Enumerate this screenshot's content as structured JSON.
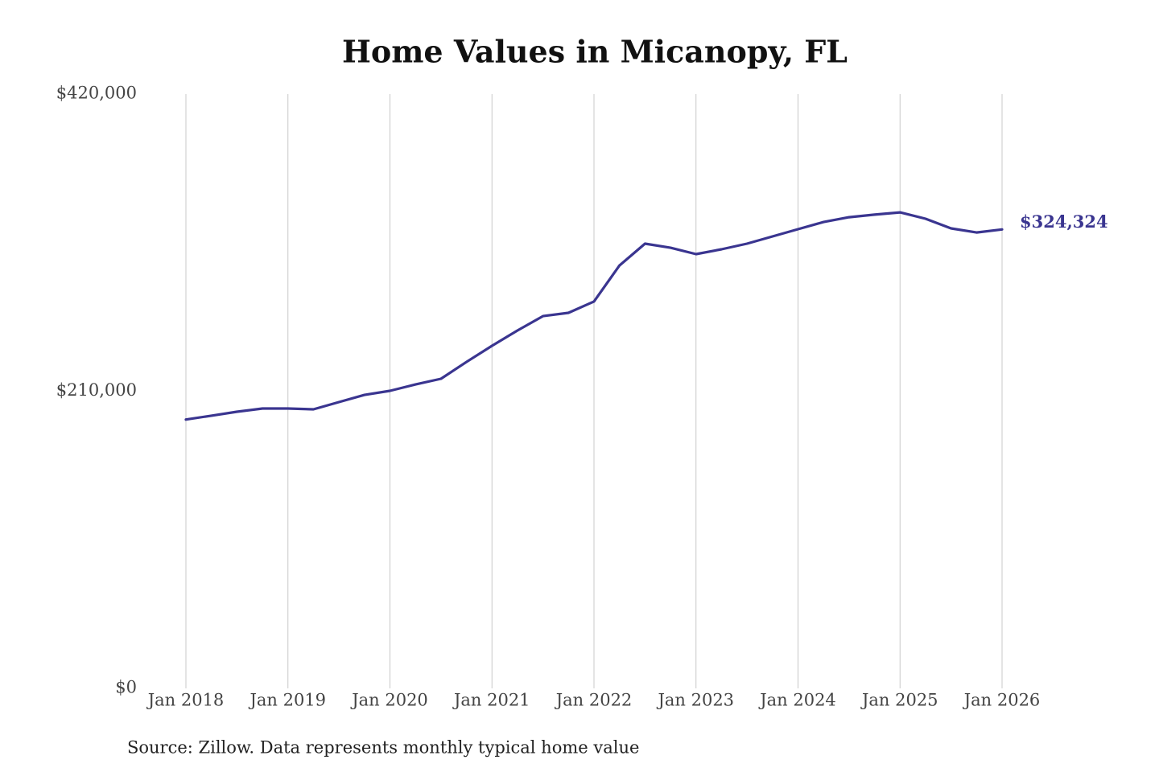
{
  "chart_data": {
    "type": "line",
    "title": "Home Values in Micanopy, FL",
    "source": "Source: Zillow. Data represents monthly typical home value",
    "x": [
      "Jan 2018",
      "Apr 2018",
      "Jul 2018",
      "Oct 2018",
      "Jan 2019",
      "Apr 2019",
      "Jul 2019",
      "Oct 2019",
      "Jan 2020",
      "Apr 2020",
      "Jul 2020",
      "Oct 2020",
      "Jan 2021",
      "Apr 2021",
      "Jul 2021",
      "Oct 2021",
      "Jan 2022",
      "Apr 2022",
      "Jul 2022",
      "Oct 2022",
      "Jan 2023",
      "Apr 2023",
      "Jul 2023",
      "Oct 2023",
      "Jan 2024",
      "Apr 2024",
      "Jul 2024",
      "Oct 2024",
      "Jan 2025",
      "Apr 2025",
      "Jul 2025",
      "Oct 2025",
      "Jan 2026"
    ],
    "series": [
      {
        "name": "Home value",
        "color": "#3a3590",
        "values": [
          190000,
          192700,
          195500,
          197800,
          197800,
          197200,
          202300,
          207400,
          210300,
          214800,
          218800,
          230700,
          242100,
          252900,
          263100,
          265400,
          273400,
          298900,
          314300,
          311400,
          306900,
          310300,
          314300,
          319400,
          324500,
          329600,
          333000,
          334800,
          336400,
          331900,
          325100,
          322200,
          324324
        ],
        "last_value_label": "$324,324"
      }
    ],
    "xticks": [
      0,
      4,
      8,
      12,
      16,
      20,
      24,
      28,
      32
    ],
    "ylim": [
      0,
      420000
    ],
    "yticks": [
      {
        "value": 0,
        "label": "$0"
      },
      {
        "value": 210000,
        "label": "$210,000"
      },
      {
        "value": 420000,
        "label": "$420,000"
      }
    ],
    "grid": "x"
  }
}
